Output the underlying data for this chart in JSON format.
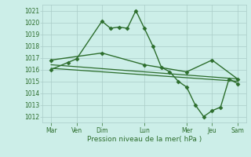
{
  "xlabel": "Pression niveau de la mer( hPa )",
  "background_color": "#cceee8",
  "grid_color": "#aaccc8",
  "line_color": "#2d6e2d",
  "ylim": [
    1011.5,
    1021.5
  ],
  "yticks": [
    1012,
    1013,
    1014,
    1015,
    1016,
    1017,
    1018,
    1019,
    1020,
    1021
  ],
  "xlim": [
    0,
    24
  ],
  "xtick_positions": [
    1,
    4,
    7,
    12,
    17,
    20,
    23
  ],
  "xtick_labels": [
    "Mar",
    "Ven",
    "Dim",
    "Lun",
    "Mer",
    "Jeu",
    "Sam"
  ],
  "series": [
    {
      "x": [
        1,
        3,
        4,
        7,
        8,
        9,
        10,
        11,
        12,
        13,
        14,
        15,
        16,
        17,
        18,
        19,
        20,
        21,
        22,
        23
      ],
      "y": [
        1016.0,
        1016.6,
        1016.9,
        1020.1,
        1019.5,
        1019.6,
        1019.5,
        1021.0,
        1019.5,
        1018.0,
        1016.2,
        1015.8,
        1015.0,
        1014.5,
        1013.0,
        1012.0,
        1012.5,
        1012.8,
        1015.2,
        1014.8
      ],
      "marker": "D",
      "markersize": 2.5,
      "linewidth": 1.0
    },
    {
      "x": [
        1,
        7,
        12,
        17,
        20,
        23
      ],
      "y": [
        1016.8,
        1017.4,
        1016.4,
        1015.8,
        1016.8,
        1015.2
      ],
      "marker": "D",
      "markersize": 2.5,
      "linewidth": 1.0
    },
    {
      "x": [
        1,
        23
      ],
      "y": [
        1016.4,
        1015.2
      ],
      "marker": null,
      "linewidth": 0.9
    },
    {
      "x": [
        1,
        23
      ],
      "y": [
        1016.1,
        1015.0
      ],
      "marker": null,
      "linewidth": 0.9
    }
  ]
}
